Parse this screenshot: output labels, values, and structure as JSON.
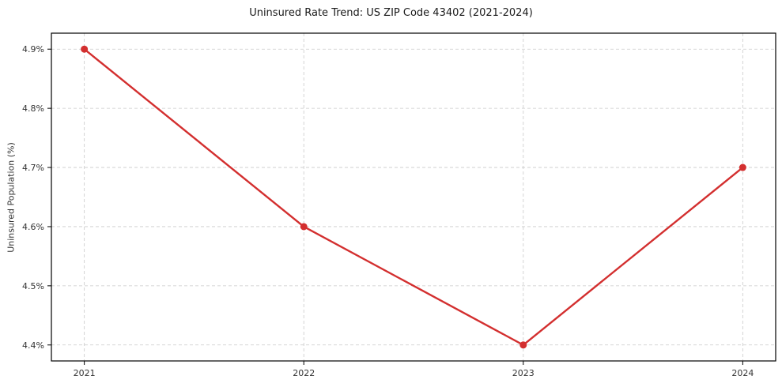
{
  "chart_data": {
    "type": "line",
    "title": "Uninsured Rate Trend: US ZIP Code 43402 (2021-2024)",
    "xlabel": "",
    "ylabel": "Uninsured Population (%)",
    "series_name": "Uninsured Rate",
    "x": [
      2021,
      2022,
      2023,
      2024
    ],
    "values": [
      4.9,
      4.6,
      4.4,
      4.7
    ],
    "x_tick_labels": [
      "2021",
      "2022",
      "2023",
      "2024"
    ],
    "y_tick_values": [
      4.4,
      4.5,
      4.6,
      4.7,
      4.8,
      4.9
    ],
    "y_tick_labels": [
      "4.4%",
      "4.5%",
      "4.6%",
      "4.7%",
      "4.8%",
      "4.9%"
    ],
    "xlim": [
      2020.85,
      2024.15
    ],
    "ylim": [
      4.373,
      4.927
    ],
    "grid": true,
    "legend": false,
    "line_color": "#d32f2f",
    "marker_color": "#d32f2f",
    "grid_color": "#c9c9c9",
    "spine_color": "#000000",
    "tick_color": "#333333"
  }
}
